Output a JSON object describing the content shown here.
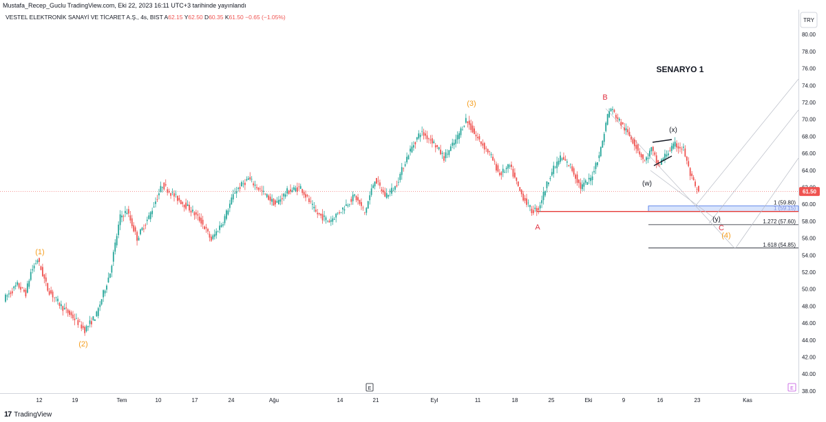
{
  "publisher_line": "Mustafa_Recep_Guclu TradingView.com, Eki 22, 2023 16:11 UTC+3 tarihinde yayınlandı",
  "legend": {
    "symbol": "VESTEL ELEKTRONİK SANAYİ VE TİCARET A.Ş., 4s, BIST",
    "o_label": "A",
    "o_value": "62.15",
    "h_label": "Y",
    "h_value": "62.50",
    "l_label": "D",
    "l_value": "60.35",
    "c_label": "K",
    "c_value": "61.50",
    "change": "−0.65 (−1.05%)"
  },
  "brand": "TradingView",
  "colors": {
    "up": "#26a69a",
    "down": "#ef5350",
    "wave_orange": "#f59c1a",
    "wave_red": "#e03040",
    "fib_fill": "#c8d9fb",
    "fib_border": "#3f6ce6"
  },
  "chart_data": {
    "type": "candlestick",
    "title": "SENARYO 1",
    "currency_label": "TRY",
    "last_price": 61.5,
    "last_price_label": "61.50",
    "ylim": [
      38,
      82
    ],
    "y_ticks": [
      "38.00",
      "40.00",
      "42.00",
      "44.00",
      "46.00",
      "48.00",
      "50.00",
      "52.00",
      "54.00",
      "56.00",
      "58.00",
      "60.00",
      "62.00",
      "64.00",
      "66.00",
      "68.00",
      "70.00",
      "72.00",
      "74.00",
      "76.00",
      "78.00",
      "80.00"
    ],
    "x_ticks": [
      "12",
      "19",
      "Tem",
      "10",
      "17",
      "24",
      "Ağu",
      "14",
      "21",
      "Eyl",
      "11",
      "18",
      "25",
      "Eki",
      "9",
      "16",
      "23",
      "Kas"
    ],
    "anchors": [
      {
        "t": 0,
        "p": 48.8
      },
      {
        "t": 8,
        "p": 50.5
      },
      {
        "t": 13,
        "p": 49.5
      },
      {
        "t": 16,
        "p": 52.0
      },
      {
        "t": 20,
        "p": 53.5
      },
      {
        "t": 26,
        "p": 50.0
      },
      {
        "t": 34,
        "p": 48.0
      },
      {
        "t": 42,
        "p": 46.5
      },
      {
        "t": 48,
        "p": 45.2
      },
      {
        "t": 55,
        "p": 47.0
      },
      {
        "t": 63,
        "p": 52.0
      },
      {
        "t": 69,
        "p": 58.5
      },
      {
        "t": 73,
        "p": 59.2
      },
      {
        "t": 79,
        "p": 56.0
      },
      {
        "t": 86,
        "p": 58.5
      },
      {
        "t": 94,
        "p": 62.3
      },
      {
        "t": 101,
        "p": 61.0
      },
      {
        "t": 110,
        "p": 59.5
      },
      {
        "t": 117,
        "p": 58.0
      },
      {
        "t": 123,
        "p": 55.8
      },
      {
        "t": 130,
        "p": 58.0
      },
      {
        "t": 137,
        "p": 61.5
      },
      {
        "t": 145,
        "p": 63.0
      },
      {
        "t": 153,
        "p": 61.5
      },
      {
        "t": 161,
        "p": 60.0
      },
      {
        "t": 168,
        "p": 61.5
      },
      {
        "t": 176,
        "p": 62.0
      },
      {
        "t": 185,
        "p": 59.0
      },
      {
        "t": 193,
        "p": 58.0
      },
      {
        "t": 201,
        "p": 59.5
      },
      {
        "t": 208,
        "p": 61.0
      },
      {
        "t": 214,
        "p": 59.0
      },
      {
        "t": 220,
        "p": 63.0
      },
      {
        "t": 226,
        "p": 61.0
      },
      {
        "t": 232,
        "p": 62.0
      },
      {
        "t": 240,
        "p": 66.0
      },
      {
        "t": 247,
        "p": 68.5
      },
      {
        "t": 254,
        "p": 67.5
      },
      {
        "t": 261,
        "p": 65.5
      },
      {
        "t": 268,
        "p": 67.5
      },
      {
        "t": 274,
        "p": 70.0
      },
      {
        "t": 280,
        "p": 68.0
      },
      {
        "t": 288,
        "p": 66.0
      },
      {
        "t": 294,
        "p": 63.5
      },
      {
        "t": 300,
        "p": 64.5
      },
      {
        "t": 306,
        "p": 61.5
      },
      {
        "t": 313,
        "p": 59.2
      },
      {
        "t": 317,
        "p": 59.5
      },
      {
        "t": 324,
        "p": 63.5
      },
      {
        "t": 330,
        "p": 65.5
      },
      {
        "t": 336,
        "p": 64.5
      },
      {
        "t": 342,
        "p": 62.0
      },
      {
        "t": 348,
        "p": 63.0
      },
      {
        "t": 354,
        "p": 66.5
      },
      {
        "t": 358,
        "p": 70.5
      },
      {
        "t": 360,
        "p": 71.3
      },
      {
        "t": 366,
        "p": 69.5
      },
      {
        "t": 373,
        "p": 67.5
      },
      {
        "t": 380,
        "p": 65.0
      },
      {
        "t": 384,
        "p": 66.5
      },
      {
        "t": 388,
        "p": 64.5
      },
      {
        "t": 393,
        "p": 66.0
      },
      {
        "t": 398,
        "p": 67.0
      },
      {
        "t": 403,
        "p": 66.5
      },
      {
        "t": 407,
        "p": 63.5
      },
      {
        "t": 411,
        "p": 61.5
      }
    ],
    "wave_labels": [
      {
        "text": "(1)",
        "color": "orange"
      },
      {
        "text": "(2)",
        "color": "orange"
      },
      {
        "text": "(3)",
        "color": "orange"
      },
      {
        "text": "(4)",
        "color": "orange"
      },
      {
        "text": "A",
        "color": "red"
      },
      {
        "text": "B",
        "color": "red"
      },
      {
        "text": "C",
        "color": "red"
      },
      {
        "text": "(w)",
        "color": "black"
      },
      {
        "text": "(x)",
        "color": "black"
      },
      {
        "text": "(y)",
        "color": "black"
      }
    ],
    "fib_levels": [
      {
        "label": "1 (59.80)",
        "value": 59.8
      },
      {
        "label": "1 (59.15)",
        "value": 59.15
      },
      {
        "label": "1.272 (57.60)",
        "value": 57.6
      },
      {
        "label": "1.618 (54.85)",
        "value": 54.85
      }
    ],
    "support_line": 59.15,
    "event_marker": "E"
  }
}
